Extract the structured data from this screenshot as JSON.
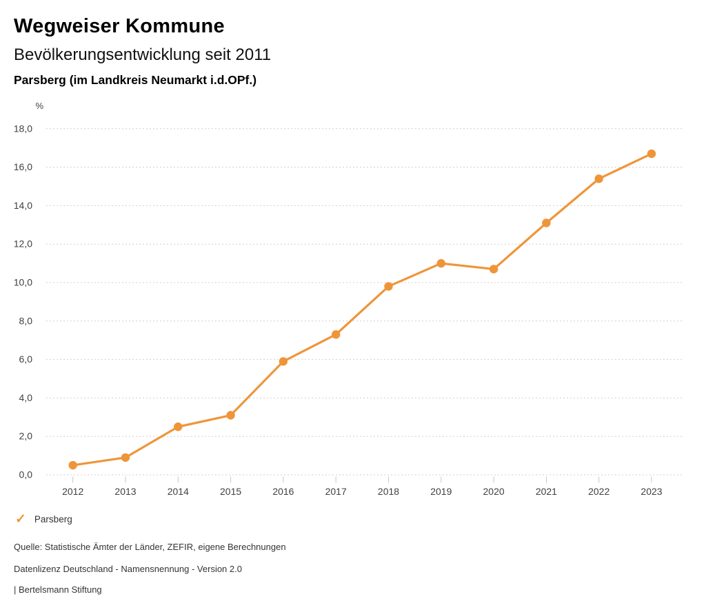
{
  "header": {
    "title": "Wegweiser Kommune",
    "subtitle": "Bevölkerungsentwicklung seit 2011",
    "location": "Parsberg (im Landkreis Neumarkt i.d.OPf.)"
  },
  "chart_data": {
    "type": "line",
    "title": "Bevölkerungsentwicklung seit 2011",
    "subject": "Parsberg",
    "unit_label": "%",
    "categories": [
      "2012",
      "2013",
      "2014",
      "2015",
      "2016",
      "2017",
      "2018",
      "2019",
      "2020",
      "2021",
      "2022",
      "2023"
    ],
    "series": [
      {
        "name": "Parsberg",
        "color": "#EF9539",
        "values": [
          0.5,
          0.9,
          2.5,
          3.1,
          5.9,
          7.3,
          9.8,
          11.0,
          10.7,
          13.1,
          15.4,
          16.7
        ]
      }
    ],
    "ylim": [
      0,
      18
    ],
    "ytick_step": 2,
    "ytick_labels": [
      "0,0",
      "2,0",
      "4,0",
      "6,0",
      "8,0",
      "10,0",
      "12,0",
      "14,0",
      "16,0",
      "18,0"
    ],
    "xlabel": "",
    "ylabel": "%",
    "grid": "horizontal-dashed",
    "legend_position": "bottom-left",
    "marker": "circle"
  },
  "colors": {
    "accent": "#EF9539",
    "grid": "#cfcfcf",
    "tick": "#c8c8c8",
    "axis_text": "#404040",
    "footer_text": "#333333"
  },
  "legend": {
    "items": [
      {
        "label": "Parsberg",
        "color": "#EF9539",
        "marker_glyph": "✓"
      }
    ]
  },
  "footer": {
    "lines": [
      "Quelle: Statistische Ämter der Länder, ZEFIR, eigene Berechnungen",
      "Datenlizenz Deutschland - Namensnennung - Version 2.0",
      "| Bertelsmann Stiftung"
    ]
  }
}
